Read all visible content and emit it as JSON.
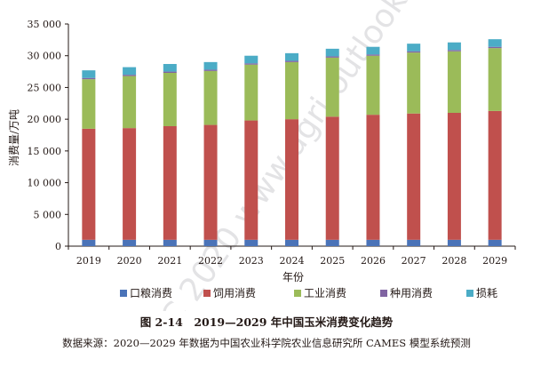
{
  "chart_data": {
    "type": "bar",
    "stacked": true,
    "categories": [
      "2019",
      "2020",
      "2021",
      "2022",
      "2023",
      "2024",
      "2025",
      "2026",
      "2027",
      "2028",
      "2029"
    ],
    "series": [
      {
        "name": "口粮消费",
        "color": "#4a73b8",
        "values": [
          1000,
          1000,
          1000,
          1000,
          1000,
          1000,
          1000,
          1000,
          1000,
          1000,
          1000
        ]
      },
      {
        "name": "饲用消费",
        "color": "#c0504d",
        "values": [
          17500,
          17600,
          17900,
          18100,
          18800,
          19000,
          19400,
          19700,
          19900,
          20000,
          20300
        ]
      },
      {
        "name": "工业消费",
        "color": "#9bbb59",
        "values": [
          7800,
          8200,
          8400,
          8500,
          8800,
          9000,
          9300,
          9300,
          9600,
          9700,
          9900
        ]
      },
      {
        "name": "种用消费",
        "color": "#8064a2",
        "values": [
          200,
          200,
          200,
          200,
          200,
          200,
          200,
          200,
          200,
          200,
          200
        ]
      },
      {
        "name": "损耗",
        "color": "#4bacc6",
        "values": [
          1200,
          1200,
          1200,
          1200,
          1200,
          1200,
          1200,
          1200,
          1200,
          1200,
          1200
        ]
      }
    ],
    "ylabel": "消费量/万吨",
    "xlabel": "年份",
    "ylim": [
      0,
      35000
    ],
    "yticks": [
      0,
      5000,
      10000,
      15000,
      20000,
      25000,
      30000,
      35000
    ],
    "ytick_labels": [
      "0",
      "5 000",
      "10 000",
      "15 000",
      "20 000",
      "25 000",
      "30 000",
      "35 000"
    ],
    "grid": false,
    "legend_position": "bottom"
  },
  "watermark": "AOC 2020 www.agri-outlook.cn",
  "caption": "图 2-14　2019—2029 年中国玉米消费变化趋势",
  "source": "数据来源：2020—2029 年数据为中国农业科学院农业信息研究所 CAMES 模型系统预测"
}
